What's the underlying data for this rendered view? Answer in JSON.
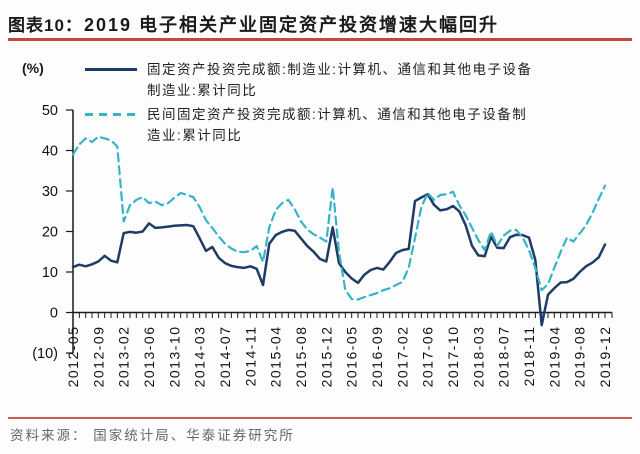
{
  "header": {
    "label": "图表10：",
    "title": "2019 电子相关产业固定资产投资增速大幅回升"
  },
  "footer": {
    "source": "资料来源： 国家统计局、华泰证券研究所"
  },
  "colors": {
    "axis": "#1a1a1a",
    "tick_label": "#111111",
    "rule_title": "#c8473c",
    "rule_footer": "#cf5c50",
    "series1": "#1f3c66",
    "series2": "#35b4c8"
  },
  "chart_data": {
    "type": "line",
    "title": "2019 电子相关产业固定资产投资增速大幅回升",
    "xlabel": "",
    "ylabel": "(%)",
    "ylim": [
      -10,
      50
    ],
    "y_ticks": [
      50,
      40,
      30,
      20,
      10,
      0,
      -10
    ],
    "y_tick_labels": [
      "50",
      "40",
      "30",
      "20",
      "10",
      "0",
      "(10)"
    ],
    "grid": false,
    "legend_position": "top-left",
    "x_label_every": 4,
    "x": [
      "2012-05",
      "2012-06",
      "2012-07",
      "2012-08",
      "2012-09",
      "2012-10",
      "2012-11",
      "2012-12",
      "2013-02",
      "2013-03",
      "2013-04",
      "2013-05",
      "2013-06",
      "2013-07",
      "2013-08",
      "2013-09",
      "2013-10",
      "2013-11",
      "2013-12",
      "2014-02",
      "2014-03",
      "2014-04",
      "2014-05",
      "2014-06",
      "2014-07",
      "2014-08",
      "2014-09",
      "2014-10",
      "2014-11",
      "2014-12",
      "2015-02",
      "2015-03",
      "2015-04",
      "2015-05",
      "2015-06",
      "2015-07",
      "2015-08",
      "2015-09",
      "2015-10",
      "2015-11",
      "2015-12",
      "2016-02",
      "2016-03",
      "2016-04",
      "2016-05",
      "2016-06",
      "2016-07",
      "2016-08",
      "2016-09",
      "2016-10",
      "2016-11",
      "2016-12",
      "2017-02",
      "2017-03",
      "2017-04",
      "2017-05",
      "2017-06",
      "2017-07",
      "2017-08",
      "2017-09",
      "2017-10",
      "2017-11",
      "2017-12",
      "2018-02",
      "2018-03",
      "2018-04",
      "2018-05",
      "2018-06",
      "2018-07",
      "2018-08",
      "2018-09",
      "2018-10",
      "2018-11",
      "2018-12",
      "2019-02",
      "2019-03",
      "2019-04",
      "2019-05",
      "2019-06",
      "2019-07",
      "2019-08",
      "2019-09",
      "2019-10",
      "2019-11",
      "2019-12"
    ],
    "series": [
      {
        "name": "固定资产投资完成额:制造业:计算机、通信和其他电子设备制造业:累计同比",
        "color": "#1f3c66",
        "line_style": "solid",
        "values": [
          11.2,
          11.8,
          11.4,
          11.9,
          12.6,
          14.0,
          12.8,
          12.4,
          19.6,
          19.9,
          19.7,
          20.0,
          22.0,
          20.9,
          21.0,
          21.2,
          21.4,
          21.5,
          21.6,
          21.3,
          18.3,
          15.2,
          16.2,
          13.5,
          12.2,
          11.5,
          11.2,
          11.0,
          11.4,
          10.8,
          6.8,
          17.0,
          19.1,
          19.9,
          20.4,
          20.2,
          18.3,
          16.4,
          15.0,
          13.2,
          12.6,
          21.0,
          12.2,
          10.0,
          8.4,
          7.3,
          9.3,
          10.5,
          11.0,
          10.6,
          12.5,
          14.7,
          15.4,
          15.7,
          27.5,
          28.4,
          29.2,
          26.6,
          25.2,
          25.5,
          26.3,
          25.0,
          21.5,
          16.5,
          14.1,
          13.9,
          18.7,
          16.0,
          15.9,
          18.6,
          19.2,
          19.1,
          18.5,
          13.0,
          -3.1,
          4.4,
          6.0,
          7.4,
          7.5,
          8.3,
          10.0,
          11.4,
          12.3,
          13.6,
          16.8
        ]
      },
      {
        "name": "民间固定资产投资完成额:计算机、通信和其他电子设备制造业:累计同比",
        "color": "#35b4c8",
        "line_style": "dashed",
        "values": [
          39.0,
          41.5,
          43.0,
          42.1,
          43.4,
          43.0,
          42.5,
          41.0,
          22.5,
          26.5,
          27.8,
          28.5,
          27.0,
          27.4,
          26.5,
          27.0,
          28.3,
          29.5,
          29.0,
          28.5,
          26.0,
          22.8,
          20.9,
          18.8,
          17.0,
          15.8,
          15.0,
          14.9,
          15.2,
          16.4,
          12.5,
          21.0,
          25.3,
          27.0,
          27.8,
          25.5,
          22.5,
          20.5,
          19.3,
          18.5,
          17.5,
          30.9,
          15.0,
          5.6,
          3.3,
          3.2,
          3.8,
          4.3,
          4.8,
          5.5,
          6.0,
          6.8,
          7.5,
          11.0,
          18.4,
          26.0,
          29.5,
          27.8,
          29.0,
          29.2,
          29.8,
          26.5,
          24.0,
          20.9,
          17.9,
          15.4,
          20.0,
          16.5,
          19.0,
          20.2,
          20.4,
          18.5,
          15.4,
          11.0,
          5.5,
          7.0,
          11.0,
          15.0,
          18.5,
          17.5,
          19.5,
          21.5,
          24.5,
          28.0,
          31.3
        ]
      }
    ]
  }
}
